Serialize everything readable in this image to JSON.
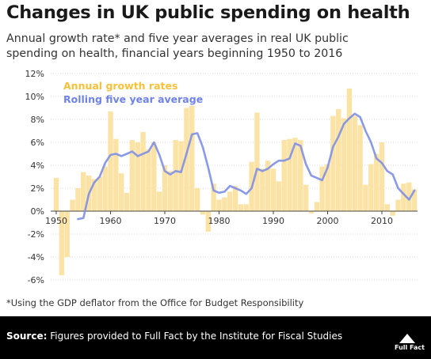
{
  "header": {
    "title": "Changes in UK public spending on health",
    "subtitle": "Annual growth rate* and five year averages in real UK public spending on health, financial years beginning 1950 to 2016"
  },
  "footnote": "*Using the GDP deflator from the Office for Budget Responsibility",
  "footer": {
    "source_label": "Source:",
    "source_text": "Figures provided to Full Fact by the Institute for Fiscal Studies",
    "logo_text": "Full Fact"
  },
  "chart_data": {
    "type": "bar",
    "title": "",
    "xlabel": "",
    "ylabel": "",
    "ylim": [
      -6,
      12
    ],
    "xlim": [
      1950,
      2016
    ],
    "grid": true,
    "legend_position": "top-left",
    "yticks": [
      "12%",
      "10%",
      "8%",
      "6%",
      "4%",
      "2%",
      "0%",
      "-2%",
      "-4%",
      "-6%"
    ],
    "ytick_values": [
      12,
      10,
      8,
      6,
      4,
      2,
      0,
      -2,
      -4,
      -6
    ],
    "xticks": [
      "1950",
      "1960",
      "1970",
      "1980",
      "1990",
      "2000",
      "2010"
    ],
    "xtick_values": [
      1950,
      1960,
      1970,
      1980,
      1990,
      2000,
      2010
    ],
    "colors": {
      "bars": "#fbe3a6",
      "line": "#7e8fe6",
      "legend_bars": "#f6c13b",
      "legend_line": "#6f82e8"
    },
    "series": [
      {
        "name": "Annual growth rates",
        "type": "bar",
        "x": [
          1950,
          1951,
          1952,
          1953,
          1954,
          1955,
          1956,
          1957,
          1958,
          1959,
          1960,
          1961,
          1962,
          1963,
          1964,
          1965,
          1966,
          1967,
          1968,
          1969,
          1970,
          1971,
          1972,
          1973,
          1974,
          1975,
          1976,
          1977,
          1978,
          1979,
          1980,
          1981,
          1982,
          1983,
          1984,
          1985,
          1986,
          1987,
          1988,
          1989,
          1990,
          1991,
          1992,
          1993,
          1994,
          1995,
          1996,
          1997,
          1998,
          1999,
          2000,
          2001,
          2002,
          2003,
          2004,
          2005,
          2006,
          2007,
          2008,
          2009,
          2010,
          2011,
          2012,
          2013,
          2014,
          2015,
          2016
        ],
        "values": [
          2.9,
          -5.6,
          -4.0,
          1.0,
          2.0,
          3.4,
          3.1,
          2.8,
          3.0,
          3.9,
          8.7,
          6.3,
          3.3,
          1.6,
          6.2,
          6.0,
          6.9,
          5.4,
          6.0,
          1.7,
          4.0,
          3.5,
          6.2,
          6.1,
          9.0,
          9.2,
          2.0,
          -0.3,
          -1.8,
          2.4,
          1.0,
          1.2,
          1.7,
          2.2,
          0.6,
          0.6,
          4.3,
          8.6,
          3.7,
          4.4,
          3.7,
          2.6,
          6.2,
          6.3,
          6.4,
          6.2,
          2.3,
          -0.2,
          0.8,
          3.9,
          4.1,
          8.3,
          8.9,
          8.1,
          10.7,
          8.3,
          7.5,
          2.3,
          4.1,
          5.0,
          6.0,
          0.6,
          -0.4,
          1.0,
          2.4,
          2.5,
          1.9
        ]
      },
      {
        "name": "Rolling five year average",
        "type": "line",
        "x": [
          1954,
          1955,
          1956,
          1957,
          1958,
          1959,
          1960,
          1961,
          1962,
          1963,
          1964,
          1965,
          1966,
          1967,
          1968,
          1969,
          1970,
          1971,
          1972,
          1973,
          1974,
          1975,
          1976,
          1977,
          1978,
          1979,
          1980,
          1981,
          1982,
          1983,
          1984,
          1985,
          1986,
          1987,
          1988,
          1989,
          1990,
          1991,
          1992,
          1993,
          1994,
          1995,
          1996,
          1997,
          1998,
          1999,
          2000,
          2001,
          2002,
          2003,
          2004,
          2005,
          2006,
          2007,
          2008,
          2009,
          2010,
          2011,
          2012,
          2013,
          2014,
          2015,
          2016
        ],
        "values": [
          -0.7,
          -0.6,
          1.5,
          2.5,
          3.0,
          4.2,
          4.9,
          5.0,
          4.8,
          5.0,
          5.2,
          4.8,
          5.0,
          5.2,
          6.0,
          4.9,
          3.5,
          3.2,
          3.5,
          3.4,
          5.0,
          6.7,
          6.8,
          5.6,
          3.8,
          1.8,
          1.6,
          1.7,
          2.2,
          2.0,
          1.8,
          1.5,
          2.0,
          3.7,
          3.5,
          3.7,
          4.1,
          4.4,
          4.4,
          4.6,
          5.9,
          5.7,
          4.1,
          3.1,
          2.9,
          2.7,
          3.8,
          5.6,
          6.5,
          7.6,
          8.1,
          8.5,
          8.2,
          7.0,
          6.0,
          4.6,
          4.2,
          3.5,
          3.2,
          2.0,
          1.5,
          1.0,
          1.8
        ]
      }
    ]
  }
}
